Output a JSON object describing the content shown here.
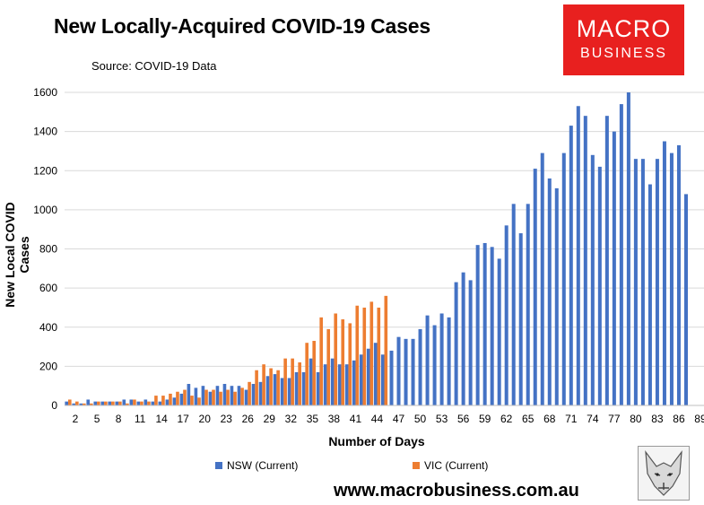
{
  "title": "New Locally-Acquired COVID-19 Cases",
  "source": "Source: COVID-19 Data",
  "logo": {
    "line1": "MACRO",
    "line2": "BUSINESS",
    "color": "#e8201f"
  },
  "url": "www.macrobusiness.com.au",
  "chart_data": {
    "type": "bar",
    "xlabel": "Number of Days",
    "ylabel": "New Local COVID Cases",
    "ylim": [
      0,
      1600
    ],
    "yticks": [
      0,
      200,
      400,
      600,
      800,
      1000,
      1200,
      1400,
      1600
    ],
    "x_start": 1,
    "x_tick_labels": [
      2,
      5,
      8,
      11,
      14,
      17,
      20,
      23,
      26,
      29,
      32,
      35,
      38,
      41,
      44,
      47,
      50,
      53,
      56,
      59,
      62,
      65,
      68,
      71,
      74,
      77,
      80,
      83,
      86,
      89
    ],
    "grid": true,
    "legend_position": "bottom",
    "series": [
      {
        "name": "NSW (Current)",
        "color": "#4472c4",
        "values": [
          20,
          10,
          10,
          30,
          20,
          20,
          20,
          20,
          30,
          30,
          20,
          30,
          20,
          20,
          30,
          40,
          60,
          110,
          90,
          100,
          70,
          100,
          110,
          100,
          100,
          80,
          110,
          120,
          150,
          160,
          140,
          140,
          170,
          170,
          240,
          170,
          210,
          240,
          210,
          210,
          230,
          260,
          290,
          320,
          260,
          280,
          350,
          340,
          340,
          390,
          460,
          410,
          470,
          450,
          630,
          680,
          640,
          820,
          830,
          810,
          750,
          920,
          1030,
          880,
          1030,
          1210,
          1290,
          1160,
          1110,
          1290,
          1430,
          1530,
          1480,
          1280,
          1220,
          1480,
          1400,
          1540,
          1600,
          1260,
          1260,
          1130,
          1260,
          1350,
          1290,
          1330,
          1080
        ]
      },
      {
        "name": "VIC (Current)",
        "color": "#ed7d31",
        "values": [
          30,
          20,
          10,
          10,
          20,
          20,
          20,
          20,
          10,
          30,
          20,
          20,
          50,
          50,
          60,
          70,
          80,
          50,
          40,
          80,
          80,
          70,
          80,
          70,
          90,
          120,
          180,
          210,
          190,
          180,
          240,
          240,
          220,
          320,
          330,
          450,
          390,
          470,
          440,
          420,
          510,
          500,
          530,
          500,
          560
        ]
      }
    ]
  }
}
